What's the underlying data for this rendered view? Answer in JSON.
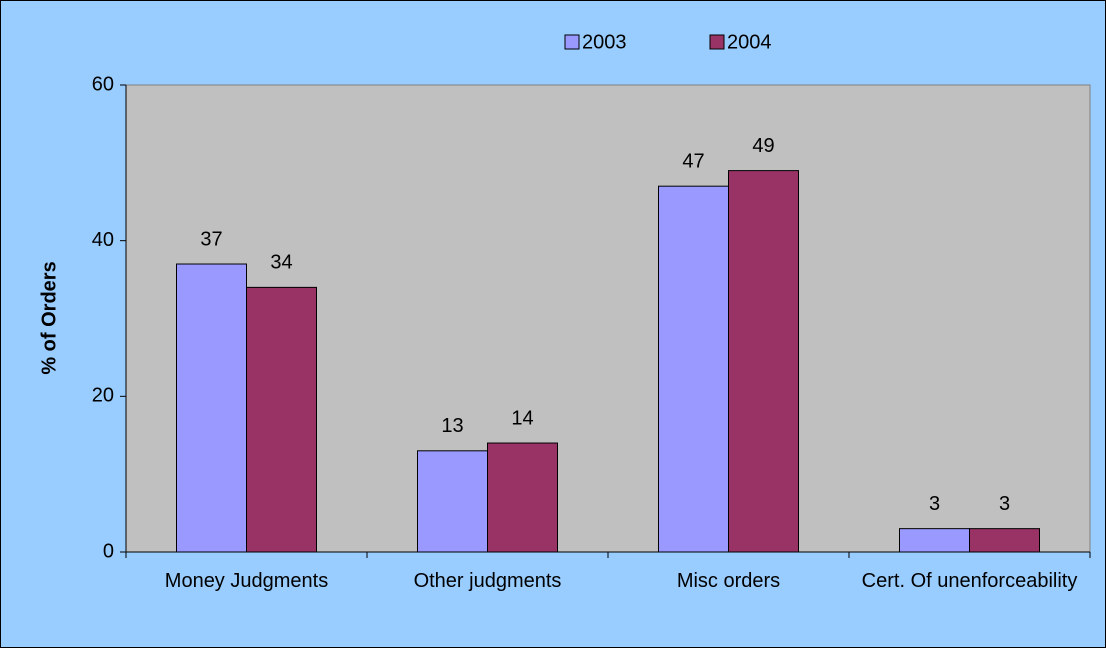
{
  "chart_data": {
    "type": "bar",
    "categories": [
      "Money Judgments",
      "Other judgments",
      "Misc orders",
      "Cert. Of unenforceability"
    ],
    "series": [
      {
        "name": "2003",
        "color": "#9999ff",
        "values": [
          37,
          13,
          47,
          3
        ]
      },
      {
        "name": "2004",
        "color": "#993366",
        "values": [
          34,
          14,
          49,
          3
        ]
      }
    ],
    "y_label": "% of Orders",
    "ylim": [
      0,
      60
    ],
    "yticks": [
      0,
      20,
      40,
      60
    ],
    "legend": "top"
  }
}
